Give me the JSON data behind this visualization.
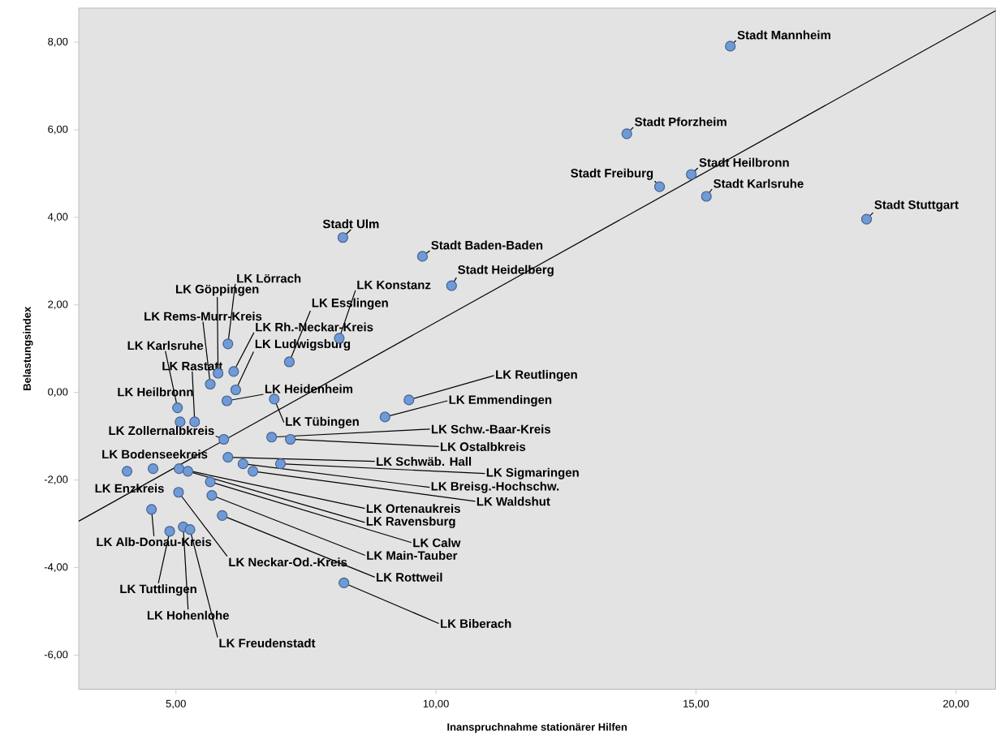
{
  "chart_data": {
    "type": "scatter",
    "xlabel": "Inanspruchnahme stationärer Hilfen",
    "ylabel": "Belastungsindex",
    "xlim": [
      3.13,
      20.76
    ],
    "ylim": [
      -6.78,
      8.78
    ],
    "xticks": [
      {
        "value": 5,
        "label": "5,00"
      },
      {
        "value": 10,
        "label": "10,00"
      },
      {
        "value": 15,
        "label": "15,00"
      },
      {
        "value": 20,
        "label": "20,00"
      }
    ],
    "yticks": [
      {
        "value": -6,
        "label": "-6,00"
      },
      {
        "value": -4,
        "label": "-4,00"
      },
      {
        "value": -2,
        "label": "-2,00"
      },
      {
        "value": 0,
        "label": "0,00"
      },
      {
        "value": 2,
        "label": "2,00"
      },
      {
        "value": 4,
        "label": "4,00"
      },
      {
        "value": 6,
        "label": "6,00"
      },
      {
        "value": 8,
        "label": "8,00"
      }
    ],
    "marker": "circle",
    "series": [
      {
        "color": "#6f9ad8",
        "x": [
          15.66,
          13.67,
          14.3,
          14.91,
          15.2,
          18.28,
          8.21,
          9.74,
          10.3,
          8.14,
          7.18,
          6.11,
          6.15,
          6.0,
          5.81,
          5.66,
          5.03,
          5.36,
          5.08,
          5.98,
          6.89,
          9.48,
          9.02,
          6.84,
          7.2,
          5.92,
          4.56,
          4.06,
          6.0,
          7.01,
          6.29,
          6.48,
          5.06,
          5.23,
          5.66,
          5.69,
          5.05,
          5.89,
          8.23,
          4.53,
          4.88,
          5.14,
          5.27
        ],
        "values": [
          7.91,
          5.91,
          4.7,
          4.98,
          4.48,
          3.96,
          3.54,
          3.11,
          2.44,
          1.24,
          0.7,
          0.48,
          0.06,
          1.11,
          0.44,
          0.19,
          -0.35,
          -0.67,
          -0.67,
          -0.19,
          -0.15,
          -0.17,
          -0.56,
          -1.02,
          -1.07,
          -1.07,
          -1.74,
          -1.8,
          -1.48,
          -1.63,
          -1.63,
          -1.8,
          -1.74,
          -1.8,
          -2.04,
          -2.35,
          -2.28,
          -2.81,
          -4.35,
          -2.67,
          -3.17,
          -3.07,
          -3.13
        ]
      },
      {
        "type": "line",
        "marker": "none",
        "color": "#000000",
        "x": [
          3.13,
          20.76
        ],
        "values": [
          -2.94,
          8.72
        ]
      }
    ],
    "annotations": [
      {
        "text": "Stadt Mannheim",
        "x": 15.66,
        "y": 7.91
      },
      {
        "text": "Stadt Pforzheim",
        "x": 13.67,
        "y": 5.91
      },
      {
        "text": "Stadt Freiburg",
        "x": 14.3,
        "y": 4.7
      },
      {
        "text": "Stadt Heilbronn",
        "x": 14.91,
        "y": 4.98
      },
      {
        "text": "Stadt Karlsruhe",
        "x": 15.2,
        "y": 4.48
      },
      {
        "text": "Stadt Stuttgart",
        "x": 18.28,
        "y": 3.96
      },
      {
        "text": "Stadt Ulm",
        "x": 8.21,
        "y": 3.54
      },
      {
        "text": "Stadt Baden-Baden",
        "x": 9.74,
        "y": 3.11
      },
      {
        "text": "Stadt Heidelberg",
        "x": 10.3,
        "y": 2.44
      },
      {
        "text": "LK Konstanz",
        "x": 8.14,
        "y": 1.24
      },
      {
        "text": "LK Esslingen",
        "x": 7.18,
        "y": 0.7
      },
      {
        "text": "LK Rh.-Neckar-Kreis",
        "x": 6.11,
        "y": 0.48
      },
      {
        "text": "LK Ludwigsburg",
        "x": 6.15,
        "y": 0.06
      },
      {
        "text": "LK Lörrach",
        "x": 6.0,
        "y": 1.11
      },
      {
        "text": "LK Göppingen",
        "x": 5.81,
        "y": 0.44
      },
      {
        "text": "LK Rems-Murr-Kreis",
        "x": 5.66,
        "y": 0.19
      },
      {
        "text": "LK Karlsruhe",
        "x": 5.03,
        "y": -0.35
      },
      {
        "text": "LK Rastatt",
        "x": 5.36,
        "y": -0.67
      },
      {
        "text": "LK Heilbronn",
        "x": 5.08,
        "y": -0.67
      },
      {
        "text": "LK Heidenheim",
        "x": 5.98,
        "y": -0.19
      },
      {
        "text": "LK Tübingen",
        "x": 6.89,
        "y": -0.15
      },
      {
        "text": "LK Reutlingen",
        "x": 9.48,
        "y": -0.17
      },
      {
        "text": "LK Emmendingen",
        "x": 9.02,
        "y": -0.56
      },
      {
        "text": "LK Schw.-Baar-Kreis",
        "x": 6.84,
        "y": -1.02
      },
      {
        "text": "LK Ostalbkreis",
        "x": 7.2,
        "y": -1.07
      },
      {
        "text": "LK Zollernalbkreis",
        "x": 5.92,
        "y": -1.07
      },
      {
        "text": "LK Bodenseekreis",
        "x": 4.56,
        "y": -1.74
      },
      {
        "text": "LK Enzkreis",
        "x": 4.06,
        "y": -1.8
      },
      {
        "text": "LK Schwäb. Hall",
        "x": 6.0,
        "y": -1.48
      },
      {
        "text": "LK Sigmaringen",
        "x": 7.01,
        "y": -1.63
      },
      {
        "text": "LK Breisg.-Hochschw.",
        "x": 6.29,
        "y": -1.63
      },
      {
        "text": "LK Waldshut",
        "x": 6.48,
        "y": -1.8
      },
      {
        "text": "LK Ortenaukreis",
        "x": 5.06,
        "y": -1.74
      },
      {
        "text": "LK Ravensburg",
        "x": 5.23,
        "y": -1.8
      },
      {
        "text": "LK Calw",
        "x": 5.66,
        "y": -2.04
      },
      {
        "text": "LK Main-Tauber",
        "x": 5.69,
        "y": -2.35
      },
      {
        "text": "LK Neckar-Od.-Kreis",
        "x": 5.05,
        "y": -2.28
      },
      {
        "text": "LK Rottweil",
        "x": 5.89,
        "y": -2.81
      },
      {
        "text": "LK Biberach",
        "x": 8.23,
        "y": -4.35
      },
      {
        "text": "LK Alb-Donau-Kreis",
        "x": 4.53,
        "y": -2.67
      },
      {
        "text": "LK Tuttlingen",
        "x": 4.88,
        "y": -3.17
      },
      {
        "text": "LK Hohenlohe",
        "x": 5.14,
        "y": -3.07
      },
      {
        "text": "LK Freudenstadt",
        "x": 5.27,
        "y": -3.13
      }
    ]
  }
}
